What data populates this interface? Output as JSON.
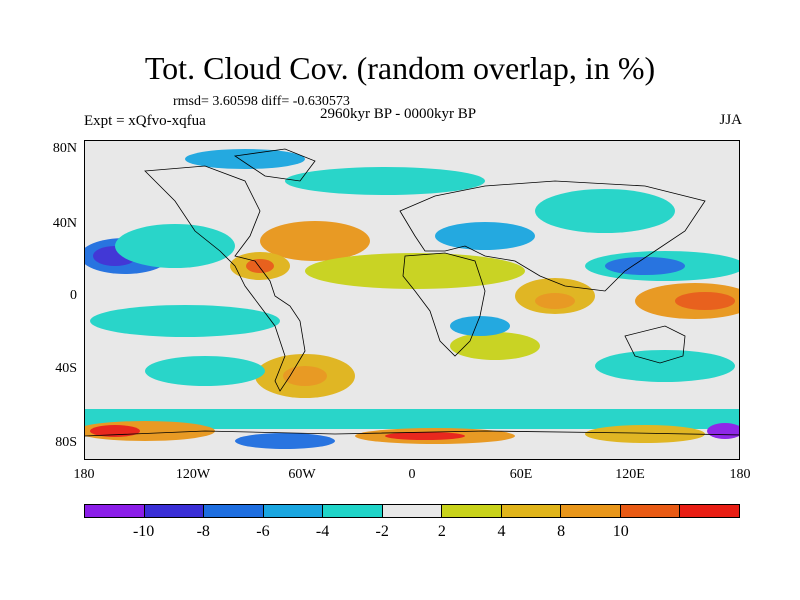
{
  "title": "Tot. Cloud Cov. (random overlap, in %)",
  "stats": "rmsd= 3.60598 diff= -0.630573",
  "experiment": "Expt = xQfvo-xqfua",
  "period": "2960kyr BP - 0000kyr BP",
  "season": "JJA",
  "lat_labels": [
    "80N",
    "40N",
    "0",
    "40S",
    "80S"
  ],
  "lon_labels": [
    "180",
    "120W",
    "60W",
    "0",
    "60E",
    "120E",
    "180"
  ],
  "colorbar": {
    "colors": [
      "#8b1ee8",
      "#3a2fd6",
      "#1e6ee0",
      "#1aa6e0",
      "#1fd4c8",
      "#e8e8e8",
      "#c8d21a",
      "#e0b41a",
      "#e8961a",
      "#e85a14",
      "#e81e14"
    ],
    "labels": [
      "-10",
      "-8",
      "-6",
      "-4",
      "-2",
      "2",
      "4",
      "8",
      "10"
    ]
  },
  "map_colors": {
    "background": "#e8e8e8",
    "land_outline": "#000000"
  }
}
